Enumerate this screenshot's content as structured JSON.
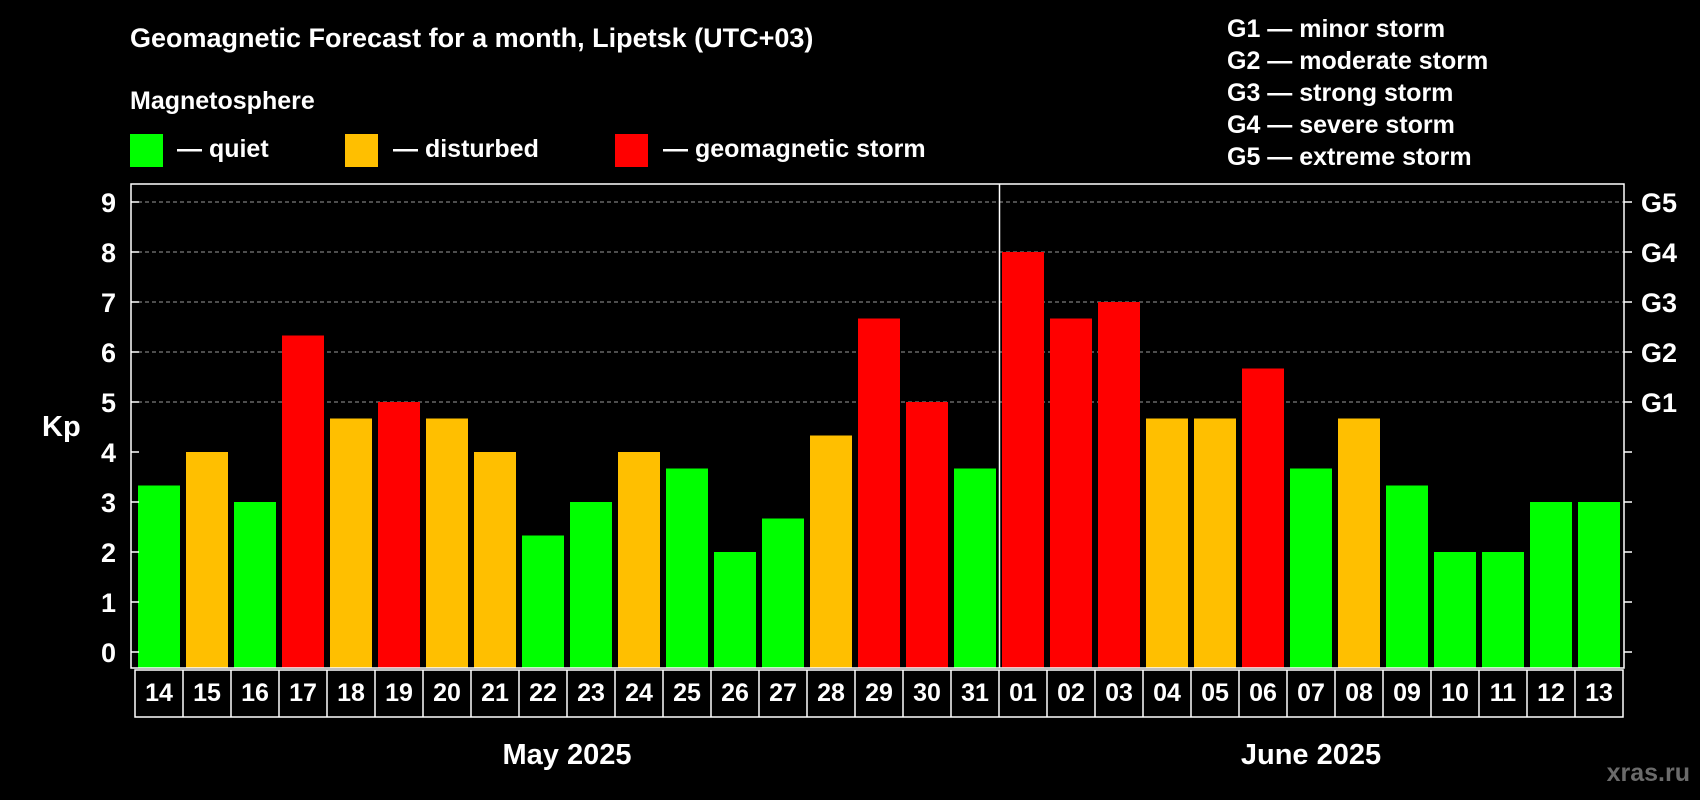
{
  "chart_data": {
    "type": "bar",
    "title": "Geomagnetic Forecast for a month, Lipetsk (UTC+03)",
    "legend_title": "Magnetosphere",
    "legend": [
      {
        "key": "quiet",
        "label": "— quiet",
        "color": "#00ff00"
      },
      {
        "key": "disturbed",
        "label": "— disturbed",
        "color": "#ffbf00"
      },
      {
        "key": "storm",
        "label": "— geomagnetic storm",
        "color": "#ff0000"
      }
    ],
    "storm_scale": [
      "G1 — minor storm",
      "G2 — moderate storm",
      "G3 — strong storm",
      "G4 — severe storm",
      "G5 — extreme storm"
    ],
    "ylabel": "Kp",
    "ylim": [
      0,
      9
    ],
    "y_ticks": [
      0,
      1,
      2,
      3,
      4,
      5,
      6,
      7,
      8,
      9
    ],
    "right_ticks": [
      {
        "kp": 5,
        "label": "G1"
      },
      {
        "kp": 6,
        "label": "G2"
      },
      {
        "kp": 7,
        "label": "G3"
      },
      {
        "kp": 8,
        "label": "G4"
      },
      {
        "kp": 9,
        "label": "G5"
      }
    ],
    "months": [
      {
        "label": "May 2025",
        "from_index": 0,
        "to_index": 17
      },
      {
        "label": "June 2025",
        "from_index": 18,
        "to_index": 30
      }
    ],
    "categories": [
      "14",
      "15",
      "16",
      "17",
      "18",
      "19",
      "20",
      "21",
      "22",
      "23",
      "24",
      "25",
      "26",
      "27",
      "28",
      "29",
      "30",
      "31",
      "01",
      "02",
      "03",
      "04",
      "05",
      "06",
      "07",
      "08",
      "09",
      "10",
      "11",
      "12",
      "13"
    ],
    "values": [
      3.33,
      4,
      3,
      6.33,
      4.67,
      5,
      4.67,
      4,
      2.33,
      3,
      4,
      3.67,
      2,
      2.67,
      4.33,
      6.67,
      5,
      3.67,
      8,
      6.67,
      7,
      4.67,
      4.67,
      5.67,
      3.67,
      4.67,
      3.33,
      2,
      2,
      3,
      3
    ],
    "levels": [
      "quiet",
      "disturbed",
      "quiet",
      "storm",
      "disturbed",
      "storm",
      "disturbed",
      "disturbed",
      "quiet",
      "quiet",
      "disturbed",
      "quiet",
      "quiet",
      "quiet",
      "disturbed",
      "storm",
      "storm",
      "quiet",
      "storm",
      "storm",
      "storm",
      "disturbed",
      "disturbed",
      "storm",
      "quiet",
      "disturbed",
      "quiet",
      "quiet",
      "quiet",
      "quiet",
      "quiet"
    ]
  },
  "watermark": "xras.ru"
}
